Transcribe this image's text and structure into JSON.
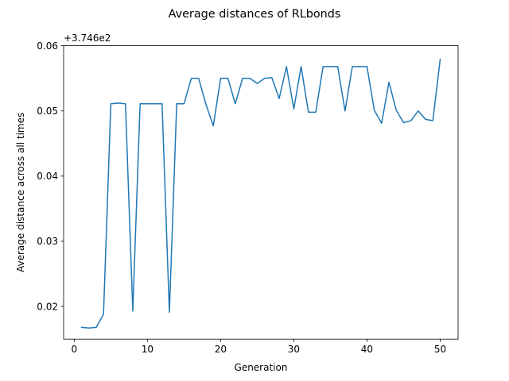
{
  "chart_data": {
    "type": "line",
    "title": "Average distances of RLbonds",
    "xlabel": "Generation",
    "ylabel": "Average distance across all times",
    "offset_text": "+3.746e2",
    "xlim": [
      -1.45,
      52.45
    ],
    "ylim": [
      0.015,
      0.06
    ],
    "xticks": [
      0,
      10,
      20,
      30,
      40,
      50
    ],
    "xtick_labels": [
      "0",
      "10",
      "20",
      "30",
      "40",
      "50"
    ],
    "yticks": [
      0.02,
      0.03,
      0.04,
      0.05,
      0.06
    ],
    "ytick_labels": [
      "0.02",
      "0.03",
      "0.04",
      "0.05",
      "0.06"
    ],
    "grid": false,
    "colors": {
      "line": "#1f77b4"
    },
    "series": [
      {
        "x": [
          1,
          2,
          3,
          4,
          5,
          6,
          7,
          8,
          9,
          10,
          11,
          12,
          13,
          14,
          15,
          16,
          17,
          18,
          19,
          20,
          21,
          22,
          23,
          24,
          25,
          26,
          27,
          28,
          29,
          30,
          31,
          32,
          33,
          34,
          35,
          36,
          37,
          38,
          39,
          40,
          41,
          42,
          43,
          44,
          45,
          46,
          47,
          48,
          49,
          50
        ],
        "values": [
          0.0168,
          0.0167,
          0.0168,
          0.0188,
          0.0511,
          0.0512,
          0.0511,
          0.0193,
          0.0511,
          0.0511,
          0.0511,
          0.0511,
          0.0191,
          0.0511,
          0.0511,
          0.055,
          0.055,
          0.051,
          0.0477,
          0.055,
          0.055,
          0.0511,
          0.055,
          0.055,
          0.0542,
          0.055,
          0.0551,
          0.0519,
          0.0568,
          0.0503,
          0.0568,
          0.0498,
          0.0498,
          0.0568,
          0.0568,
          0.0568,
          0.05,
          0.0568,
          0.0568,
          0.0568,
          0.0501,
          0.0481,
          0.0544,
          0.0501,
          0.0482,
          0.0485,
          0.05,
          0.0487,
          0.0485,
          0.0579
        ]
      }
    ]
  }
}
